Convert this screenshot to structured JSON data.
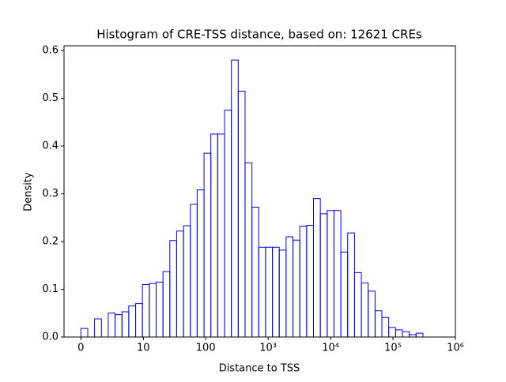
{
  "chart_data": {
    "type": "histogram",
    "title": "Histogram of CRE-TSS distance, based on: 12621 CREs",
    "x_label": "Distance to TSS",
    "y_label": "Density",
    "color": "#0000ff",
    "bins": [
      0,
      0.11,
      0.219,
      0.329,
      0.438,
      0.548,
      0.658,
      0.767,
      0.877,
      0.986,
      1.096,
      1.206,
      1.315,
      1.425,
      1.534,
      1.644,
      1.754,
      1.863,
      1.973,
      2.082,
      2.192,
      2.302,
      2.411,
      2.521,
      2.63,
      2.74,
      2.85,
      2.959,
      3.069,
      3.178,
      3.288,
      3.398,
      3.507,
      3.617,
      3.726,
      3.836,
      3.946,
      4.055,
      4.165,
      4.274,
      4.384,
      4.494,
      4.603,
      4.713,
      4.822,
      4.932,
      5.042,
      5.151,
      5.261,
      5.37,
      5.48
    ],
    "values": [
      0.018,
      0,
      0.038,
      0,
      0.05,
      0.047,
      0.053,
      0.065,
      0.07,
      0.11,
      0.112,
      0.115,
      0.137,
      0.202,
      0.222,
      0.233,
      0.278,
      0.308,
      0.385,
      0.425,
      0.425,
      0.475,
      0.58,
      0.515,
      0.365,
      0.272,
      0.188,
      0.188,
      0.188,
      0.182,
      0.21,
      0.203,
      0.232,
      0.234,
      0.29,
      0.258,
      0.265,
      0.265,
      0.178,
      0.218,
      0.135,
      0.113,
      0.096,
      0.055,
      0.041,
      0.02,
      0.015,
      0.011,
      0.005,
      0.008
    ],
    "xlim": [
      -0.27,
      6
    ],
    "xticks": [
      0,
      {
        "value": 1,
        "label": "10"
      },
      {
        "value": 2,
        "label": "100"
      },
      {
        "value": 3,
        "label": "10³"
      },
      {
        "value": 4,
        "label": "10⁴"
      },
      {
        "value": 5,
        "label": "10⁵"
      },
      {
        "value": 6,
        "label": "10⁶"
      }
    ],
    "ylim": [
      0,
      0.61
    ],
    "yticks": [
      {
        "value": 0,
        "label": "0.0"
      },
      0.1,
      0.2,
      0.3,
      0.4,
      0.5,
      0.6
    ]
  }
}
